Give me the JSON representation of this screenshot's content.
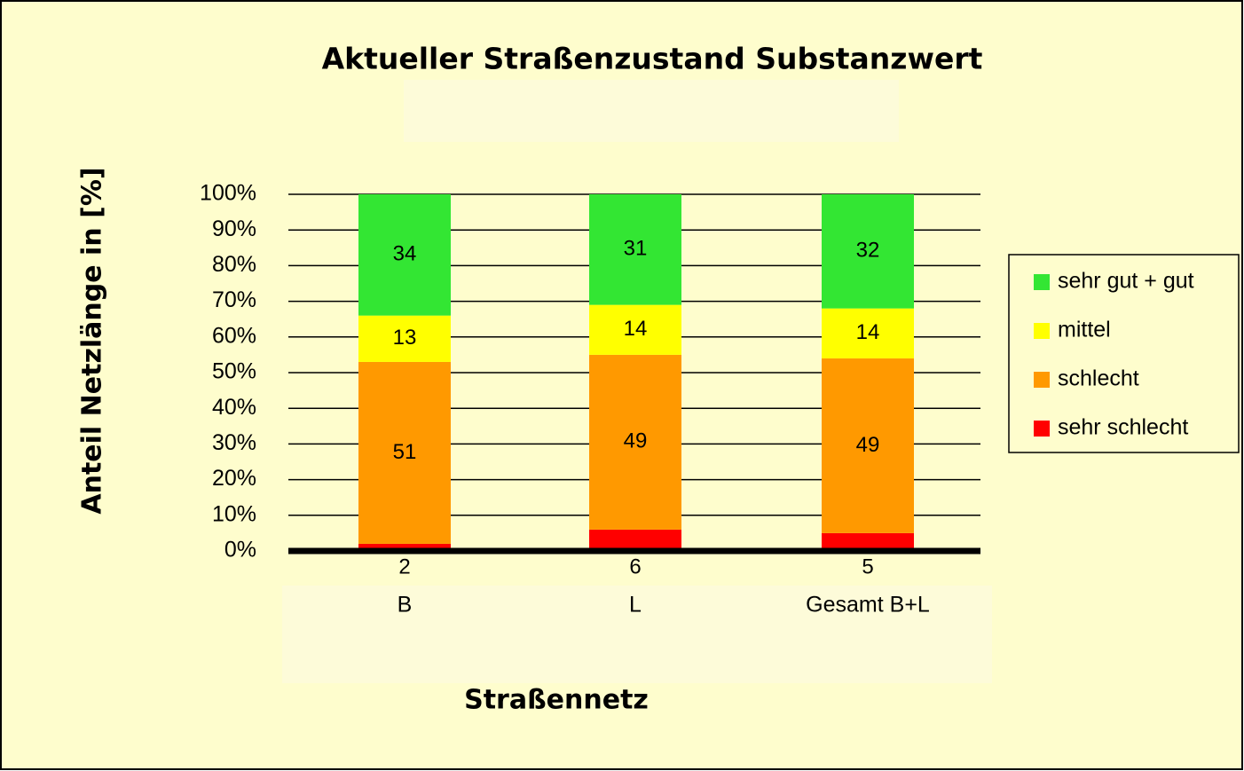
{
  "chart_data": {
    "type": "stacked_bar",
    "title": "Aktueller Straßenzustand  Substanzwert",
    "y_label": "Anteil Netzlänge in [%]",
    "x_label": "Straßennetz",
    "categories": [
      "B",
      "L",
      "Gesamt B+L"
    ],
    "series": [
      {
        "name": "sehr schlecht",
        "color": "#ff0000",
        "values": [
          2,
          6,
          5
        ]
      },
      {
        "name": "schlecht",
        "color": "#ff9900",
        "values": [
          51,
          49,
          49
        ]
      },
      {
        "name": "mittel",
        "color": "#ffff00",
        "values": [
          13,
          14,
          14
        ]
      },
      {
        "name": "sehr gut + gut",
        "color": "#33e633",
        "values": [
          34,
          31,
          32
        ]
      }
    ],
    "ylim": [
      0,
      100
    ],
    "yticks": [
      {
        "value": 0,
        "label": "0%"
      },
      {
        "value": 10,
        "label": "10%"
      },
      {
        "value": 20,
        "label": "20%"
      },
      {
        "value": 30,
        "label": "30%"
      },
      {
        "value": 40,
        "label": "40%"
      },
      {
        "value": 50,
        "label": "50%"
      },
      {
        "value": 60,
        "label": "60%"
      },
      {
        "value": 70,
        "label": "70%"
      },
      {
        "value": 80,
        "label": "80%"
      },
      {
        "value": 90,
        "label": "90%"
      },
      {
        "value": 100,
        "label": "100%"
      }
    ],
    "grid": true,
    "legend": "right"
  }
}
